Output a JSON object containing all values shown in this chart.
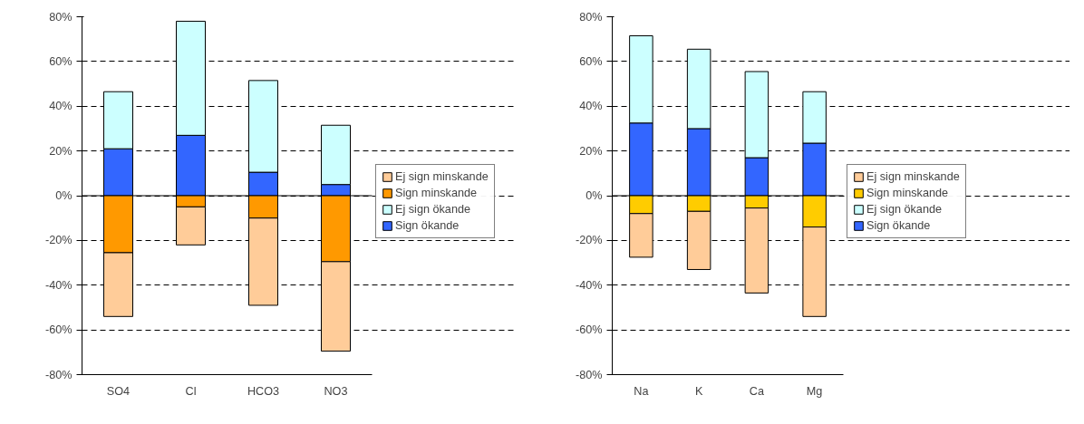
{
  "chart_data": [
    {
      "type": "bar",
      "stacked": true,
      "categories": [
        "SO4",
        "Cl",
        "HCO3",
        "NO3"
      ],
      "series": [
        {
          "name": "Sign ökande",
          "color": "#3366ff",
          "values": [
            21,
            27,
            10.5,
            5
          ]
        },
        {
          "name": "Ej sign ökande",
          "color": "#ccffff",
          "values": [
            25.5,
            51,
            41,
            26.5
          ]
        },
        {
          "name": "Sign minskande",
          "color": "#ff9900",
          "values": [
            -25.5,
            -5,
            -10,
            -29.5
          ]
        },
        {
          "name": "Ej sign minskande",
          "color": "#ffcc99",
          "values": [
            -28.5,
            -17,
            -39,
            -40
          ]
        }
      ],
      "ylim": [
        -80,
        80
      ],
      "yticks": [
        {
          "value": -80,
          "label": "-80%"
        },
        {
          "value": -60,
          "label": "-60%"
        },
        {
          "value": -40,
          "label": "-40%"
        },
        {
          "value": -20,
          "label": "-20%"
        },
        {
          "value": 0,
          "label": "0%"
        },
        {
          "value": 20,
          "label": "20%"
        },
        {
          "value": 40,
          "label": "40%"
        },
        {
          "value": 60,
          "label": "60%"
        },
        {
          "value": 80,
          "label": "80%"
        }
      ],
      "grid": "y",
      "legend": "right"
    },
    {
      "type": "bar",
      "stacked": true,
      "categories": [
        "Na",
        "K",
        "Ca",
        "Mg"
      ],
      "series": [
        {
          "name": "Sign ökande",
          "color": "#3366ff",
          "values": [
            32.5,
            30,
            17,
            23.5
          ]
        },
        {
          "name": "Ej sign ökande",
          "color": "#ccffff",
          "values": [
            39,
            35.5,
            38.5,
            23
          ]
        },
        {
          "name": "Sign minskande",
          "color": "#ffcc00",
          "values": [
            -8,
            -7,
            -5.5,
            -14
          ]
        },
        {
          "name": "Ej sign minskande",
          "color": "#ffcc99",
          "values": [
            -19.5,
            -26,
            -38,
            -40
          ]
        }
      ],
      "ylim": [
        -80,
        80
      ],
      "yticks": [
        {
          "value": -80,
          "label": "-80%"
        },
        {
          "value": -60,
          "label": "-60%"
        },
        {
          "value": -40,
          "label": "-40%"
        },
        {
          "value": -20,
          "label": "-20%"
        },
        {
          "value": 0,
          "label": "0%"
        },
        {
          "value": 20,
          "label": "20%"
        },
        {
          "value": 40,
          "label": "40%"
        },
        {
          "value": 60,
          "label": "60%"
        },
        {
          "value": 80,
          "label": "80%"
        }
      ],
      "grid": "y",
      "legend": "right"
    }
  ]
}
